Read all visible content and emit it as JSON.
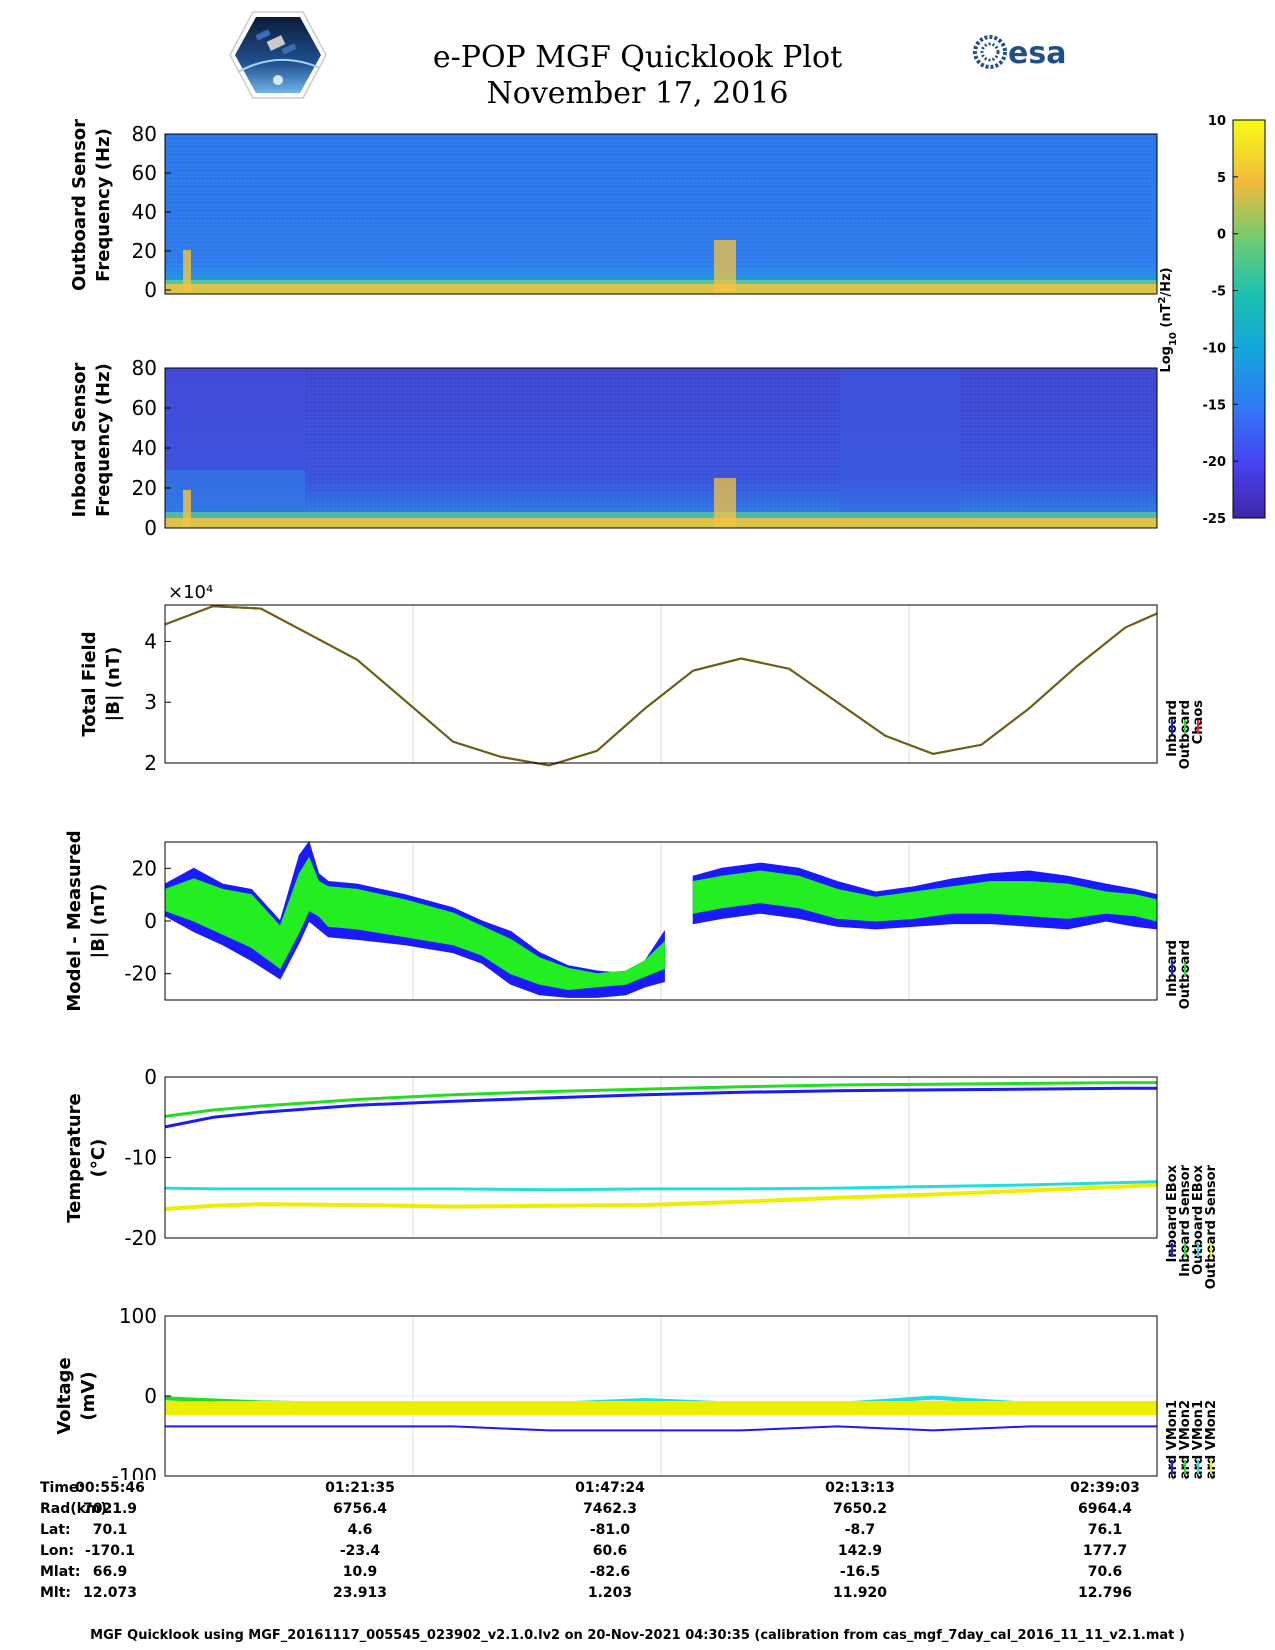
{
  "title_line1": "e-POP MGF Quicklook Plot",
  "title_line2": "November 17, 2016",
  "esa_logo_text": "esa",
  "colorbar": {
    "label": "Log10 (nT²/Hz)",
    "ticks": [
      10,
      5,
      0,
      -5,
      -10,
      -15,
      -20,
      -25
    ],
    "range": [
      -25,
      10
    ]
  },
  "panels": {
    "outboard_spec": {
      "ylabel1": "Outboard Sensor",
      "ylabel2": "Frequency (Hz)",
      "yticks": [
        "80",
        "60",
        "40",
        "20",
        "0"
      ]
    },
    "inboard_spec": {
      "ylabel1": "Inboard Sensor",
      "ylabel2": "Frequency (Hz)",
      "yticks": [
        "80",
        "60",
        "40",
        "20",
        "0"
      ]
    },
    "total_field": {
      "ylabel1": "Total Field",
      "ylabel2": "|B| (nT)",
      "yticks": [
        "4",
        "3",
        "2"
      ],
      "exponent": "×10⁴",
      "legend": [
        "Inboard",
        "Outboard",
        "Chaos"
      ],
      "legend_colors": [
        "#1a1aff",
        "#22dd22",
        "#ff2222"
      ]
    },
    "model_measured": {
      "ylabel1": "Model - Measured",
      "ylabel2": "|B| (nT)",
      "yticks": [
        "20",
        "0",
        "-20"
      ],
      "legend": [
        "Inboard",
        "Outboard"
      ],
      "legend_colors": [
        "#1a1aff",
        "#22dd22"
      ]
    },
    "temperature": {
      "ylabel1": "Temperature",
      "ylabel2": "(°C)",
      "yticks": [
        "0",
        "-10",
        "-20"
      ],
      "legend": [
        "Inboard EBox",
        "Inboard Sensor",
        "Outboard EBox",
        "Outboard Sensor"
      ],
      "legend_colors": [
        "#1a1aff",
        "#22dd22",
        "#22dddd",
        "#eeee00"
      ]
    },
    "voltage": {
      "ylabel1": "Voltage",
      "ylabel2": "(mV)",
      "yticks": [
        "100",
        "0",
        "-100"
      ],
      "legend": [
        "Inboard VMon1",
        "Inboard VMon2",
        "Outboard VMon1",
        "Outboard VMon2"
      ],
      "legend_colors": [
        "#1a1aff",
        "#22dd22",
        "#22dddd",
        "#eeee00"
      ]
    }
  },
  "chart_data": [
    {
      "type": "heatmap",
      "name": "Outboard Sensor spectrogram",
      "ylabel": "Outboard Sensor Frequency (Hz)",
      "ylim": [
        0,
        80
      ],
      "xlim": [
        "00:55:46",
        "02:39:03"
      ],
      "description_level_log10": -14,
      "low_freq_band_log10": 5
    },
    {
      "type": "heatmap",
      "name": "Inboard Sensor spectrogram",
      "ylabel": "Inboard Sensor Frequency (Hz)",
      "ylim": [
        0,
        80
      ],
      "xlim": [
        "00:55:46",
        "02:39:03"
      ],
      "description_level_log10": -19,
      "low_freq_band_log10": 5
    },
    {
      "type": "line",
      "ylabel": "Total Field |B| (nT)",
      "ylim": [
        20000,
        46000
      ],
      "x_minutes": [
        0,
        5,
        10,
        20,
        30,
        35,
        40,
        45,
        50,
        55,
        60,
        65,
        70,
        75,
        80,
        85,
        90,
        95,
        100,
        103.3
      ],
      "series": [
        {
          "name": "Inboard",
          "values": [
            42800,
            45800,
            45400,
            37000,
            23500,
            21000,
            19600,
            22000,
            29000,
            35200,
            37200,
            35500,
            30000,
            24500,
            21500,
            23000,
            29000,
            36000,
            42300,
            44600
          ]
        },
        {
          "name": "Outboard",
          "values": [
            42800,
            45800,
            45400,
            37000,
            23500,
            21000,
            19600,
            22000,
            29000,
            35200,
            37200,
            35500,
            30000,
            24500,
            21500,
            23000,
            29000,
            36000,
            42300,
            44600
          ]
        },
        {
          "name": "Chaos",
          "values": [
            42800,
            45800,
            45400,
            37000,
            23500,
            21000,
            19600,
            22000,
            29000,
            35200,
            37200,
            35500,
            30000,
            24500,
            21500,
            23000,
            29000,
            36000,
            42300,
            44600
          ]
        }
      ]
    },
    {
      "type": "area",
      "ylabel": "Model - Measured |B| (nT)",
      "ylim": [
        -30,
        30
      ],
      "segments": [
        {
          "x_minutes": [
            0,
            3,
            6,
            9,
            12,
            14,
            15,
            16,
            17,
            20,
            25,
            30,
            33,
            36,
            39,
            42,
            45,
            48,
            50,
            52
          ],
          "series": [
            {
              "name": "Inboard",
              "upper": [
                14,
                20,
                14,
                12,
                0,
                25,
                30,
                18,
                15,
                14,
                10,
                5,
                0,
                -4,
                -12,
                -17,
                -19,
                -20,
                -15,
                -4
              ],
              "lower": [
                2,
                -4,
                -9,
                -15,
                -22,
                -8,
                0,
                -3,
                -6,
                -7,
                -9,
                -12,
                -16,
                -24,
                -28,
                -29,
                -29,
                -28,
                -25,
                -23
              ]
            },
            {
              "name": "Outboard",
              "upper": [
                12,
                16,
                12,
                10,
                -2,
                18,
                24,
                15,
                13,
                12,
                8,
                3,
                -2,
                -7,
                -14,
                -18,
                -20,
                -19,
                -15,
                -8
              ],
              "lower": [
                4,
                0,
                -5,
                -10,
                -18,
                -4,
                4,
                2,
                -2,
                -3,
                -6,
                -9,
                -13,
                -20,
                -24,
                -26,
                -25,
                -24,
                -21,
                -18
              ]
            }
          ]
        },
        {
          "x_minutes": [
            55,
            58,
            62,
            66,
            70,
            74,
            78,
            82,
            86,
            90,
            94,
            98,
            101,
            103.3
          ],
          "series": [
            {
              "name": "Inboard",
              "upper": [
                17,
                20,
                22,
                20,
                15,
                11,
                13,
                16,
                18,
                19,
                17,
                14,
                12,
                10
              ],
              "lower": [
                -1,
                1,
                3,
                1,
                -2,
                -3,
                -2,
                -1,
                -1,
                -2,
                -3,
                0,
                -2,
                -3
              ]
            },
            {
              "name": "Outboard",
              "upper": [
                15,
                17,
                19,
                17,
                12,
                9,
                11,
                13,
                15,
                15,
                14,
                11,
                10,
                8
              ],
              "lower": [
                3,
                5,
                7,
                5,
                1,
                0,
                1,
                3,
                3,
                2,
                1,
                3,
                2,
                0
              ]
            }
          ]
        }
      ]
    },
    {
      "type": "line",
      "ylabel": "Temperature (°C)",
      "ylim": [
        -20,
        0
      ],
      "x_minutes": [
        0,
        5,
        10,
        20,
        30,
        40,
        50,
        60,
        70,
        80,
        90,
        100,
        103.3
      ],
      "series": [
        {
          "name": "Inboard EBox",
          "values": [
            -6.2,
            -5.0,
            -4.4,
            -3.5,
            -3.0,
            -2.6,
            -2.2,
            -1.9,
            -1.7,
            -1.6,
            -1.5,
            -1.4,
            -1.4
          ]
        },
        {
          "name": "Inboard Sensor",
          "values": [
            -4.9,
            -4.1,
            -3.6,
            -2.8,
            -2.2,
            -1.8,
            -1.5,
            -1.2,
            -1.0,
            -0.9,
            -0.8,
            -0.7,
            -0.7
          ]
        },
        {
          "name": "Outboard EBox",
          "values": [
            -13.8,
            -13.9,
            -13.9,
            -13.9,
            -13.9,
            -14.0,
            -13.9,
            -13.9,
            -13.8,
            -13.6,
            -13.4,
            -13.1,
            -13.0
          ]
        },
        {
          "name": "Outboard Sensor",
          "values": [
            -16.4,
            -16.0,
            -15.8,
            -15.9,
            -16.1,
            -16.0,
            -15.9,
            -15.5,
            -15.0,
            -14.6,
            -14.1,
            -13.6,
            -13.4
          ]
        }
      ]
    },
    {
      "type": "line",
      "ylabel": "Voltage (mV)",
      "ylim": [
        -100,
        100
      ],
      "x_minutes": [
        0,
        10,
        20,
        30,
        40,
        50,
        60,
        70,
        80,
        90,
        100,
        103.3
      ],
      "series": [
        {
          "name": "Inboard VMon1",
          "values": [
            -38,
            -38,
            -38,
            -38,
            -43,
            -43,
            -43,
            -38,
            -43,
            -38,
            -38,
            -38
          ]
        },
        {
          "name": "Inboard VMon2",
          "values": [
            -3,
            -8,
            -10,
            -10,
            -10,
            -10,
            -10,
            -10,
            -10,
            -10,
            -10,
            -10
          ]
        },
        {
          "name": "Outboard VMon1",
          "values": [
            -10,
            -10,
            -10,
            -10,
            -10,
            -5,
            -10,
            -10,
            -2,
            -10,
            -10,
            -10
          ]
        },
        {
          "name": "Outboard VMon2",
          "values": [
            -15,
            -15,
            -15,
            -15,
            -15,
            -15,
            -15,
            -15,
            -15,
            -15,
            -15,
            -15
          ]
        }
      ]
    }
  ],
  "time_table": {
    "labels": [
      "Time:",
      "Rad(km):",
      "Lat:",
      "Lon:",
      "Mlat:",
      "Mlt:"
    ],
    "columns": [
      [
        "00:55:46",
        "7021.9",
        "70.1",
        "-170.1",
        "66.9",
        "12.073"
      ],
      [
        "01:21:35",
        "6756.4",
        "4.6",
        "-23.4",
        "10.9",
        "23.913"
      ],
      [
        "01:47:24",
        "7462.3",
        "-81.0",
        "60.6",
        "-82.6",
        "1.203"
      ],
      [
        "02:13:13",
        "7650.2",
        "-8.7",
        "142.9",
        "-16.5",
        "11.920"
      ],
      [
        "02:39:03",
        "6964.4",
        "76.1",
        "177.7",
        "70.6",
        "12.796"
      ]
    ]
  },
  "footer": "MGF Quicklook using MGF_20161117_005545_023902_v2.1.0.lv2 on 20-Nov-2021 04:30:35 (calibration from cas_mgf_7day_cal_2016_11_11_v2.1.mat )"
}
